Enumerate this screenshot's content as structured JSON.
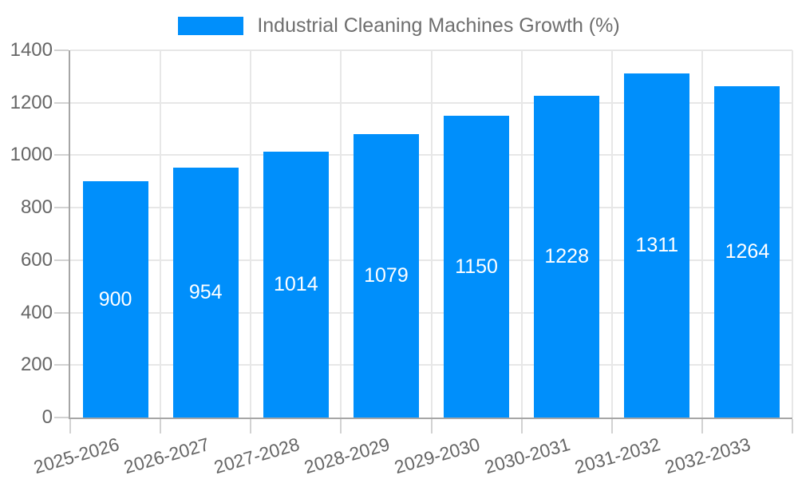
{
  "legend": {
    "label": "Industrial Cleaning Machines Growth (%)",
    "position": "top"
  },
  "chart_data": {
    "type": "bar",
    "title": "",
    "categories": [
      "2025-2026",
      "2026-2027",
      "2027-2028",
      "2028-2029",
      "2029-2030",
      "2030-2031",
      "2031-2032",
      "2032-2033"
    ],
    "series": [
      {
        "name": "Industrial Cleaning Machines Growth (%)",
        "values": [
          900,
          954,
          1014,
          1079,
          1150,
          1228,
          1311,
          1264
        ]
      }
    ],
    "xlabel": "",
    "ylabel": "",
    "ylim": [
      0,
      1400
    ],
    "yticks": [
      0,
      200,
      400,
      600,
      800,
      1000,
      1200,
      1400
    ],
    "grid": true,
    "legend_position": "top",
    "bar_color": "#008FFB",
    "data_label_color": "#ffffff",
    "x_label_rotation_deg": -16
  },
  "colors": {
    "axis_text": "#666666",
    "legend_text": "#6e6e6e",
    "grid_line": "#e7e7e7",
    "tick_mark": "#d2d2d2",
    "axis_line": "#a6a6a6",
    "background": "#ffffff"
  }
}
